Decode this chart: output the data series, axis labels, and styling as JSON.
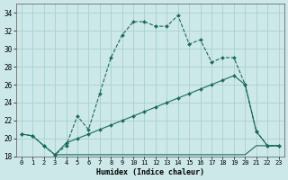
{
  "xlabel": "Humidex (Indice chaleur)",
  "bg_color": "#cce8e8",
  "grid_color": "#aacfcf",
  "line_color": "#1a6b5a",
  "xlim": [
    -0.5,
    23.5
  ],
  "ylim": [
    18,
    35
  ],
  "yticks": [
    18,
    20,
    22,
    24,
    26,
    28,
    30,
    32,
    34
  ],
  "xticks": [
    0,
    1,
    2,
    3,
    4,
    5,
    6,
    7,
    8,
    9,
    10,
    11,
    12,
    13,
    14,
    15,
    16,
    17,
    18,
    19,
    20,
    21,
    22,
    23
  ],
  "line1_x": [
    0,
    1,
    2,
    3,
    4,
    5,
    6,
    7,
    8,
    9,
    10,
    11,
    12,
    13,
    14,
    15,
    16,
    17,
    18,
    19,
    20,
    21,
    22,
    23
  ],
  "line1_y": [
    20.5,
    20.3,
    19.2,
    18.2,
    19.2,
    22.5,
    21.0,
    25.0,
    29.0,
    31.5,
    33.0,
    33.0,
    32.5,
    32.5,
    33.7,
    30.5,
    31.0,
    28.5,
    29.0,
    29.0,
    26.0,
    20.8,
    19.2,
    19.2
  ],
  "line2_x": [
    0,
    1,
    2,
    3,
    4,
    5,
    6,
    7,
    8,
    9,
    10,
    11,
    12,
    13,
    14,
    15,
    16,
    17,
    18,
    19,
    20,
    21,
    22,
    23
  ],
  "line2_y": [
    20.5,
    20.3,
    19.2,
    18.2,
    19.5,
    20.0,
    20.5,
    21.0,
    21.5,
    22.0,
    22.5,
    23.0,
    23.5,
    24.0,
    24.5,
    25.0,
    25.5,
    26.0,
    26.5,
    27.0,
    26.0,
    20.8,
    19.2,
    19.2
  ],
  "line3_x": [
    3,
    4,
    5,
    6,
    7,
    8,
    9,
    10,
    11,
    12,
    13,
    14,
    15,
    16,
    17,
    18,
    19,
    20,
    21,
    22,
    23
  ],
  "line3_y": [
    18.2,
    18.2,
    18.2,
    18.2,
    18.2,
    18.2,
    18.2,
    18.2,
    18.2,
    18.2,
    18.2,
    18.2,
    18.2,
    18.2,
    18.2,
    18.2,
    18.2,
    18.2,
    19.2,
    19.2,
    19.2
  ]
}
